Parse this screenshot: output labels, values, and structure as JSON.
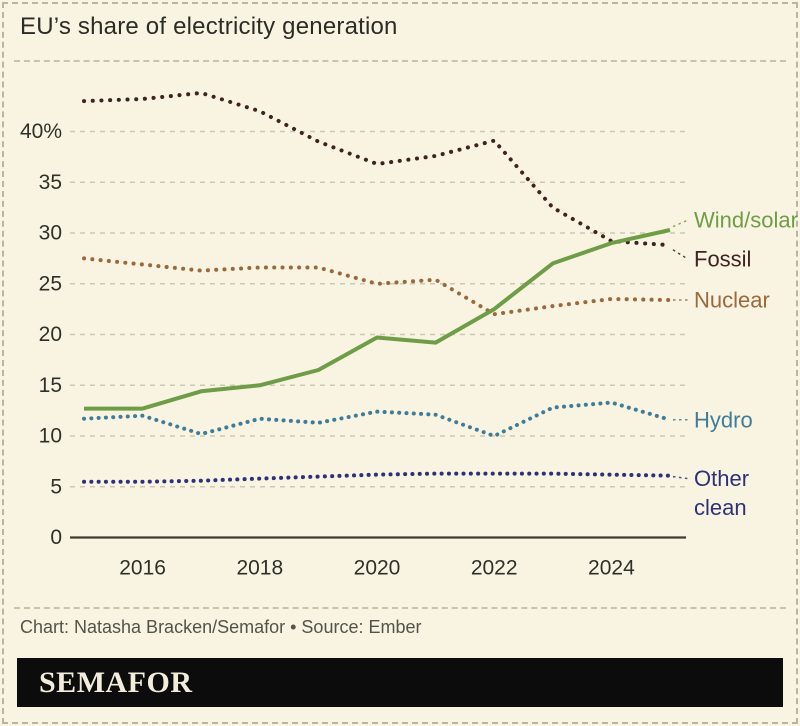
{
  "title": "EU’s share of electricity generation",
  "footer": {
    "credit": "Chart: Natasha Bracken/Semafor • Source: Ember",
    "brand": "SEMAFOR"
  },
  "chart_data": {
    "type": "line",
    "title": "EU’s share of electricity generation",
    "x": [
      2015,
      2016,
      2017,
      2018,
      2019,
      2020,
      2021,
      2022,
      2023,
      2024,
      2025
    ],
    "x_ticks": [
      2016,
      2018,
      2020,
      2022,
      2024
    ],
    "y_ticks": [
      40,
      35,
      30,
      25,
      20,
      15,
      10,
      5,
      0
    ],
    "y_tick_labels": [
      "40%",
      "35",
      "30",
      "25",
      "20",
      "15",
      "10",
      "5",
      "0"
    ],
    "ylim": [
      0,
      46
    ],
    "grid": "horizontal-dashed",
    "grid_color": "#cbc8b5",
    "axis_color": "#3c3c34",
    "legend_position": "right-of-line-ends",
    "series": [
      {
        "name": "Wind/solar",
        "style": "solid",
        "color": "#6f9c46",
        "label_dy": -10,
        "values": [
          12.7,
          12.7,
          14.4,
          15.0,
          16.5,
          19.7,
          19.2,
          22.5,
          27.0,
          29.0,
          30.3
        ]
      },
      {
        "name": "Fossil",
        "style": "dotted",
        "color": "#402223",
        "dot_gap": 8.6,
        "label_dy": 14,
        "values": [
          43.0,
          43.2,
          43.8,
          42.0,
          39.0,
          36.8,
          37.6,
          39.1,
          32.5,
          29.2,
          28.8
        ]
      },
      {
        "name": "Nuclear",
        "style": "dotted",
        "color": "#9a6a3c",
        "dot_gap": 8.2,
        "label_dy": 0,
        "values": [
          27.5,
          26.9,
          26.3,
          26.6,
          26.6,
          25.0,
          25.4,
          22.0,
          22.8,
          23.5,
          23.4
        ]
      },
      {
        "name": "Hydro",
        "style": "dotted",
        "color": "#407c98",
        "dot_gap": 7.2,
        "label_dy": 0,
        "values": [
          11.7,
          12.0,
          10.2,
          11.7,
          11.3,
          12.4,
          12.1,
          10.0,
          12.8,
          13.3,
          11.6
        ]
      },
      {
        "name": "Other clean",
        "style": "dotted",
        "color": "#2e3178",
        "dot_gap": 7.2,
        "label_dy": 3,
        "label_lines": [
          "Other",
          "clean"
        ],
        "values": [
          5.5,
          5.5,
          5.6,
          5.8,
          6.0,
          6.2,
          6.3,
          6.3,
          6.3,
          6.2,
          6.1
        ]
      }
    ]
  }
}
